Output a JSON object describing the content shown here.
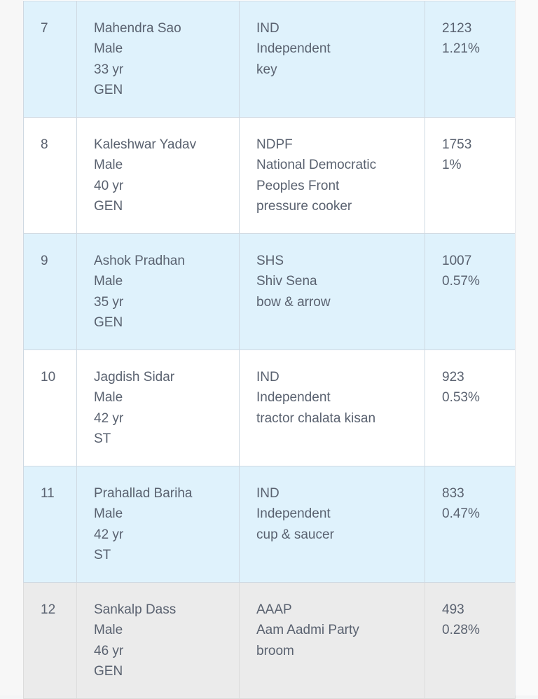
{
  "results_table": {
    "rows": [
      {
        "sn": "7",
        "candidate": {
          "name": "Mahendra Sao",
          "gender": "Male",
          "age": "33 yr",
          "category": "GEN"
        },
        "party": {
          "abbr": "IND",
          "name_lines": [
            "Independent"
          ],
          "symbol": "key"
        },
        "votes": {
          "count": "2123",
          "percent": "1.21%"
        },
        "row_style": "blue"
      },
      {
        "sn": "8",
        "candidate": {
          "name": "Kaleshwar Yadav",
          "gender": "Male",
          "age": "40 yr",
          "category": "GEN"
        },
        "party": {
          "abbr": "NDPF",
          "name_lines": [
            "National Democratic",
            "Peoples Front"
          ],
          "symbol": "pressure cooker"
        },
        "votes": {
          "count": "1753",
          "percent": "1%"
        },
        "row_style": "white"
      },
      {
        "sn": "9",
        "candidate": {
          "name": "Ashok Pradhan",
          "gender": "Male",
          "age": "35 yr",
          "category": "GEN"
        },
        "party": {
          "abbr": "SHS",
          "name_lines": [
            "Shiv Sena"
          ],
          "symbol": "bow & arrow"
        },
        "votes": {
          "count": "1007",
          "percent": "0.57%"
        },
        "row_style": "blue"
      },
      {
        "sn": "10",
        "candidate": {
          "name": "Jagdish Sidar",
          "gender": "Male",
          "age": "42 yr",
          "category": "ST"
        },
        "party": {
          "abbr": "IND",
          "name_lines": [
            "Independent"
          ],
          "symbol": "tractor chalata kisan"
        },
        "votes": {
          "count": "923",
          "percent": "0.53%"
        },
        "row_style": "white"
      },
      {
        "sn": "11",
        "candidate": {
          "name": "Prahallad Bariha",
          "gender": "Male",
          "age": "42 yr",
          "category": "ST"
        },
        "party": {
          "abbr": "IND",
          "name_lines": [
            "Independent"
          ],
          "symbol": "cup & saucer"
        },
        "votes": {
          "count": "833",
          "percent": "0.47%"
        },
        "row_style": "blue"
      },
      {
        "sn": "12",
        "candidate": {
          "name": "Sankalp Dass",
          "gender": "Male",
          "age": "46 yr",
          "category": "GEN"
        },
        "party": {
          "abbr": "AAAP",
          "name_lines": [
            "Aam Aadmi Party"
          ],
          "symbol": "broom"
        },
        "votes": {
          "count": "493",
          "percent": "0.28%"
        },
        "row_style": "grey"
      }
    ]
  },
  "colors": {
    "row_blue": "#dff2fc",
    "row_white": "#ffffff",
    "row_grey": "#ebebeb",
    "text": "#5a6270",
    "border": "#cfd9e2"
  }
}
